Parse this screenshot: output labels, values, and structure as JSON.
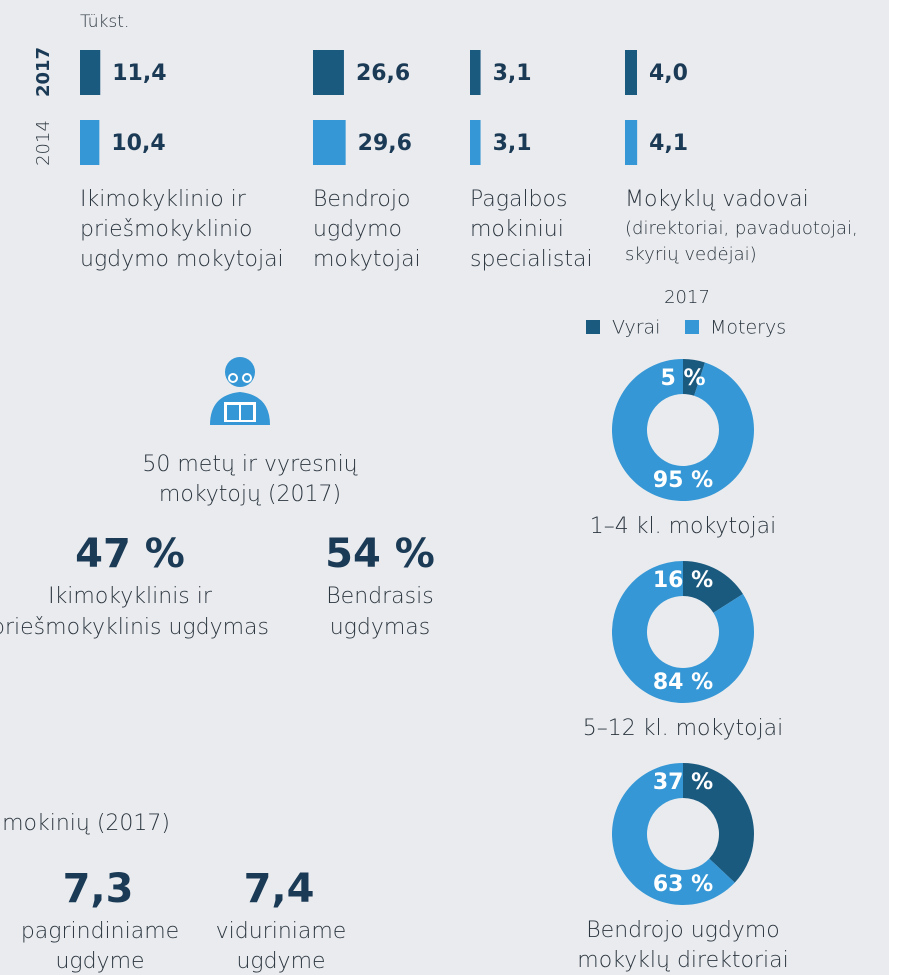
{
  "unit": "Tükst.",
  "years": [
    "2017",
    "2014"
  ],
  "bar_colors": [
    "#1b5a7f",
    "#3597d5"
  ],
  "groups": [
    {
      "label_lines": [
        "Ikimokyklinio ir",
        "priešmokyklinio",
        "ugdymo mokytojai"
      ],
      "values": [
        11.4,
        10.4
      ],
      "value_labels": [
        "11,4",
        "10,4"
      ]
    },
    {
      "label_lines": [
        "Bendrojo",
        "ugdymo",
        "mokytojai"
      ],
      "values": [
        26.6,
        29.6
      ],
      "value_labels": [
        "26,6",
        "29,6"
      ]
    },
    {
      "label_lines": [
        "Pagalbos",
        "mokiniui",
        "specialistai"
      ],
      "values": [
        3.1,
        3.1
      ],
      "value_labels": [
        "3,1",
        "3,1"
      ]
    },
    {
      "label_lines": [
        "Mokyklų vadovai"
      ],
      "note_lines": [
        "(direktoriai, pavaduotojai,",
        "skyrių vedėjai)"
      ],
      "values": [
        4.0,
        4.1
      ],
      "value_labels": [
        "4,0",
        "4,1"
      ]
    }
  ],
  "gender": {
    "year": "2017",
    "legend": [
      "Vyrai",
      "Moterys"
    ],
    "colors": [
      "#1b5a7f",
      "#3597d5"
    ],
    "donuts": [
      {
        "values": [
          5,
          95
        ],
        "value_labels": [
          "5 %",
          "95 %"
        ],
        "caption_lines": [
          "1–4 kl. mokytojai"
        ]
      },
      {
        "values": [
          16,
          84
        ],
        "value_labels": [
          "16 %",
          "84 %"
        ],
        "caption_lines": [
          "5–12 kl. mokytojai"
        ]
      },
      {
        "values": [
          37,
          63
        ],
        "value_labels": [
          "37 %",
          "63 %"
        ],
        "caption_lines": [
          "Bendrojo ugdymo",
          "mokyklų direktoriai"
        ]
      }
    ]
  },
  "older": {
    "title_lines": [
      "50 metų ir vyresnių",
      "mokytojų (2017)"
    ],
    "stats": [
      {
        "value": "47 %",
        "label_lines": [
          "Ikimokyklinis ir",
          "priešmokyklinis ugdymas"
        ]
      },
      {
        "value": "54 %",
        "label_lines": [
          "Bendrasis",
          "ugdymas"
        ]
      }
    ]
  },
  "students": {
    "title": "mokinių (2017)",
    "stats": [
      {
        "value": "7,3",
        "label_lines": [
          "pagrindiniame",
          "ugdyme"
        ]
      },
      {
        "value": "7,4",
        "label_lines": [
          "viduriniame",
          "ugdyme"
        ]
      }
    ]
  }
}
